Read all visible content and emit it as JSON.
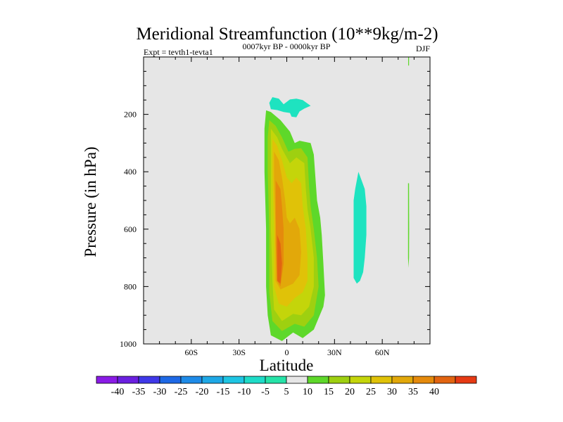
{
  "chart_data": {
    "type": "contour",
    "title": "Meridional Streamfunction (10**9kg/m-2)",
    "subtitle_left": "Expt = tevth1-tevta1",
    "subtitle_center": "0007kyr BP - 0000kyr BP",
    "subtitle_right": "DJF",
    "xlabel": "Latitude",
    "ylabel": "Pressure (in hPa)",
    "xlim": [
      -90,
      90
    ],
    "ylim": [
      0,
      1000
    ],
    "y_inverted": true,
    "x_ticks": [
      {
        "value": -60,
        "label": "60S"
      },
      {
        "value": -30,
        "label": "30S"
      },
      {
        "value": 0,
        "label": "0"
      },
      {
        "value": 30,
        "label": "30N"
      },
      {
        "value": 60,
        "label": "60N"
      }
    ],
    "y_ticks": [
      {
        "value": 200,
        "label": "200"
      },
      {
        "value": 400,
        "label": "400"
      },
      {
        "value": 600,
        "label": "600"
      },
      {
        "value": 800,
        "label": "800"
      },
      {
        "value": 1000,
        "label": "1000"
      }
    ],
    "background_color": "#e6e6e6",
    "regions": [
      {
        "name": "south-cell-level-5",
        "color": "#5ed82a",
        "points": [
          [
            -13,
            186
          ],
          [
            -10,
            192
          ],
          [
            -4,
            220
          ],
          [
            2,
            260
          ],
          [
            5,
            300
          ],
          [
            8,
            292
          ],
          [
            15,
            300
          ],
          [
            17,
            340
          ],
          [
            18,
            420
          ],
          [
            19,
            500
          ],
          [
            21,
            560
          ],
          [
            22,
            620
          ],
          [
            23,
            720
          ],
          [
            24,
            830
          ],
          [
            23,
            870
          ],
          [
            17,
            950
          ],
          [
            10,
            980
          ],
          [
            4,
            960
          ],
          [
            -3,
            990
          ],
          [
            -10,
            970
          ],
          [
            -12,
            900
          ],
          [
            -13,
            800
          ],
          [
            -13,
            600
          ],
          [
            -14,
            400
          ],
          [
            -14,
            250
          ]
        ]
      },
      {
        "name": "south-cell-level-10",
        "color": "#9ed010",
        "points": [
          [
            -11,
            220
          ],
          [
            -7,
            240
          ],
          [
            -3,
            280
          ],
          [
            1,
            330
          ],
          [
            5,
            320
          ],
          [
            9,
            318
          ],
          [
            13,
            350
          ],
          [
            14,
            450
          ],
          [
            15,
            520
          ],
          [
            17,
            600
          ],
          [
            19,
            700
          ],
          [
            20,
            800
          ],
          [
            17,
            900
          ],
          [
            11,
            940
          ],
          [
            5,
            930
          ],
          [
            -3,
            955
          ],
          [
            -9,
            920
          ],
          [
            -11,
            820
          ],
          [
            -11,
            600
          ],
          [
            -12,
            400
          ],
          [
            -12,
            280
          ]
        ]
      },
      {
        "name": "south-cell-level-15",
        "color": "#c4d50a",
        "points": [
          [
            -10,
            250
          ],
          [
            -6,
            280
          ],
          [
            -3,
            320
          ],
          [
            2,
            370
          ],
          [
            6,
            350
          ],
          [
            11,
            370
          ],
          [
            12,
            460
          ],
          [
            13,
            530
          ],
          [
            15,
            600
          ],
          [
            17,
            700
          ],
          [
            17,
            800
          ],
          [
            14,
            870
          ],
          [
            9,
            900
          ],
          [
            4,
            895
          ],
          [
            -3,
            920
          ],
          [
            -8,
            880
          ],
          [
            -9,
            780
          ],
          [
            -10,
            600
          ],
          [
            -10,
            400
          ],
          [
            -10,
            300
          ]
        ]
      },
      {
        "name": "south-cell-level-20",
        "color": "#e0c208",
        "points": [
          [
            -9,
            285
          ],
          [
            -6,
            310
          ],
          [
            -3,
            360
          ],
          [
            0,
            420
          ],
          [
            3,
            440
          ],
          [
            6,
            420
          ],
          [
            9,
            440
          ],
          [
            10,
            520
          ],
          [
            12,
            600
          ],
          [
            13,
            700
          ],
          [
            13,
            780
          ],
          [
            10,
            820
          ],
          [
            5,
            840
          ],
          [
            0,
            870
          ],
          [
            -5,
            860
          ],
          [
            -8,
            800
          ],
          [
            -8,
            600
          ],
          [
            -9,
            400
          ]
        ]
      },
      {
        "name": "south-cell-level-25",
        "color": "#e2a80a",
        "points": [
          [
            -8,
            330
          ],
          [
            -5,
            360
          ],
          [
            -3,
            420
          ],
          [
            -1,
            500
          ],
          [
            0,
            560
          ],
          [
            2,
            580
          ],
          [
            5,
            560
          ],
          [
            8,
            600
          ],
          [
            9,
            680
          ],
          [
            8,
            760
          ],
          [
            4,
            790
          ],
          [
            0,
            800
          ],
          [
            -4,
            810
          ],
          [
            -7,
            780
          ],
          [
            -7,
            600
          ],
          [
            -8,
            420
          ]
        ]
      },
      {
        "name": "south-cell-level-30",
        "color": "#e58a0c",
        "points": [
          [
            -7,
            430
          ],
          [
            -4,
            460
          ],
          [
            -3,
            520
          ],
          [
            -2,
            600
          ],
          [
            -2,
            720
          ],
          [
            -4,
            800
          ],
          [
            -6,
            780
          ],
          [
            -7,
            650
          ],
          [
            -7,
            520
          ]
        ]
      },
      {
        "name": "south-cell-level-35",
        "color": "#e26411",
        "points": [
          [
            -6,
            620
          ],
          [
            -4,
            650
          ],
          [
            -3,
            720
          ],
          [
            -4,
            790
          ],
          [
            -6,
            780
          ],
          [
            -6,
            700
          ]
        ]
      },
      {
        "name": "upper-negative-patch",
        "color": "#1ee3c0",
        "points": [
          [
            -11,
            160
          ],
          [
            -9,
            140
          ],
          [
            -5,
            145
          ],
          [
            -2,
            165
          ],
          [
            2,
            148
          ],
          [
            6,
            145
          ],
          [
            10,
            150
          ],
          [
            15,
            170
          ],
          [
            11,
            180
          ],
          [
            8,
            190
          ],
          [
            6,
            210
          ],
          [
            3,
            208
          ],
          [
            2,
            195
          ],
          [
            -2,
            192
          ],
          [
            -6,
            185
          ],
          [
            -10,
            182
          ]
        ]
      },
      {
        "name": "mid-north-negative-patch",
        "color": "#1ee3c0",
        "points": [
          [
            43,
            460
          ],
          [
            45,
            400
          ],
          [
            47,
            430
          ],
          [
            49,
            460
          ],
          [
            50,
            520
          ],
          [
            50,
            620
          ],
          [
            49,
            700
          ],
          [
            48,
            750
          ],
          [
            46,
            780
          ],
          [
            44,
            790
          ],
          [
            42,
            770
          ],
          [
            42,
            660
          ],
          [
            42,
            560
          ],
          [
            42,
            500
          ]
        ]
      },
      {
        "name": "polar-positive-strip-upper",
        "color": "#5ed82a",
        "points": [
          [
            76.3,
            0
          ],
          [
            76.8,
            0
          ],
          [
            76.8,
            30
          ],
          [
            76.3,
            30
          ]
        ]
      },
      {
        "name": "polar-positive-strip-lower",
        "color": "#5ed82a",
        "points": [
          [
            76.2,
            440
          ],
          [
            76.8,
            440
          ],
          [
            76.9,
            600
          ],
          [
            76.8,
            700
          ],
          [
            76.5,
            735
          ],
          [
            76.2,
            700
          ]
        ]
      }
    ],
    "colorbar": {
      "colors": [
        "#8a1be6",
        "#6b20e0",
        "#3f38e8",
        "#1e69e6",
        "#1e8be8",
        "#1ea8e6",
        "#1ec5e3",
        "#1edcc8",
        "#26e3a8",
        "#e6e6e6",
        "#5ed82a",
        "#9ed010",
        "#c4d50a",
        "#e0c208",
        "#e2a80a",
        "#e58a0c",
        "#e26411",
        "#e63a14"
      ],
      "labels": [
        "-40",
        "-35",
        "-30",
        "-25",
        "-20",
        "-15",
        "-10",
        "-5",
        "5",
        "10",
        "15",
        "20",
        "25",
        "30",
        "35",
        "40"
      ]
    }
  }
}
